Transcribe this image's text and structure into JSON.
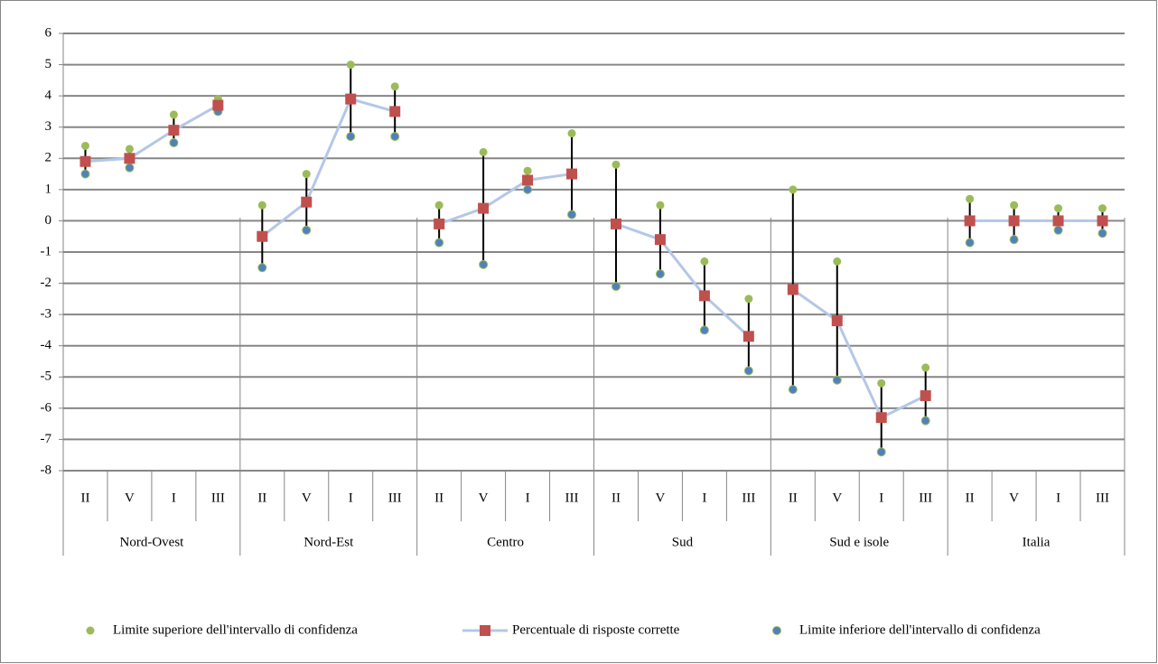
{
  "chart_data": {
    "type": "range",
    "groups": [
      "Nord-Ovest",
      "Nord-Est",
      "Centro",
      "Sud",
      "Sud e isole",
      "Italia"
    ],
    "categories": [
      "II",
      "V",
      "I",
      "III",
      "II",
      "V",
      "I",
      "III",
      "II",
      "V",
      "I",
      "III",
      "II",
      "V",
      "I",
      "III",
      "II",
      "V",
      "I",
      "III",
      "II",
      "V",
      "I",
      "III"
    ],
    "series": [
      {
        "name": "Limite superiore dell'intervallo di confidenza",
        "role": "upper",
        "color": "#9bbb59",
        "values": [
          2.4,
          2.3,
          3.4,
          3.9,
          0.5,
          1.5,
          5.0,
          4.3,
          0.5,
          2.2,
          1.6,
          2.8,
          1.8,
          0.5,
          -1.3,
          -2.5,
          1.0,
          -1.3,
          -5.2,
          -4.7,
          0.7,
          0.5,
          0.4,
          0.4
        ]
      },
      {
        "name": "Percentuale di risposte corrette",
        "role": "mid",
        "color": "#c0504d",
        "line_color": "#b4c7e7",
        "values": [
          1.9,
          2.0,
          2.9,
          3.7,
          -0.5,
          0.6,
          3.9,
          3.5,
          -0.1,
          0.4,
          1.3,
          1.5,
          -0.1,
          -0.6,
          -2.4,
          -3.7,
          -2.2,
          -3.2,
          -6.3,
          -5.6,
          0.0,
          0.0,
          0.0,
          0.0
        ]
      },
      {
        "name": "Limite inferiore dell'intervallo di confidenza",
        "role": "lower",
        "color": "#4f81bd",
        "values": [
          1.5,
          1.7,
          2.5,
          3.5,
          -1.5,
          -0.3,
          2.7,
          2.7,
          -0.7,
          -1.4,
          1.0,
          0.2,
          -2.1,
          -1.7,
          -3.5,
          -4.8,
          -5.4,
          -5.1,
          -7.4,
          -6.4,
          -0.7,
          -0.6,
          -0.3,
          -0.4
        ]
      }
    ],
    "ylim": [
      -8,
      6
    ],
    "yticks": [
      -8,
      -7,
      -6,
      -5,
      -4,
      -3,
      -2,
      -1,
      0,
      1,
      2,
      3,
      4,
      5,
      6
    ],
    "grid": true
  }
}
